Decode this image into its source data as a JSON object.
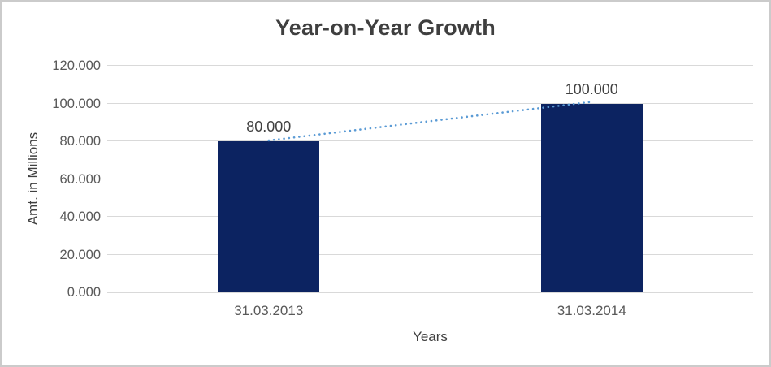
{
  "frame": {
    "background": "#ffffff",
    "border_color": "#cbcbcb"
  },
  "chart_data": {
    "type": "bar",
    "title": "Year-on-Year Growth",
    "xlabel": "Years",
    "ylabel": "Amt. in Millions",
    "categories": [
      "31.03.2013",
      "31.03.2014"
    ],
    "values": [
      80.0,
      100.0
    ],
    "value_labels": [
      "80.000",
      "100.000"
    ],
    "ylim": [
      0,
      120
    ],
    "yticks": {
      "values": [
        0,
        20,
        40,
        60,
        80,
        100,
        120
      ],
      "labels": [
        "0.000",
        "20.000",
        "40.000",
        "60.000",
        "80.000",
        "100.000",
        "120.000"
      ]
    },
    "grid": true,
    "legend": "none",
    "trendline": {
      "style": "dotted",
      "description": "straight dotted line connecting bar tops from 80.000 to 100.000"
    },
    "colors": {
      "bar": "#0c2361",
      "trendline": "#5b9bd5",
      "gridline": "#d9d9d9",
      "title_text": "#3f3f3f",
      "tick_text": "#595959",
      "axis_title_text": "#404040",
      "data_label_text": "#404040"
    }
  }
}
